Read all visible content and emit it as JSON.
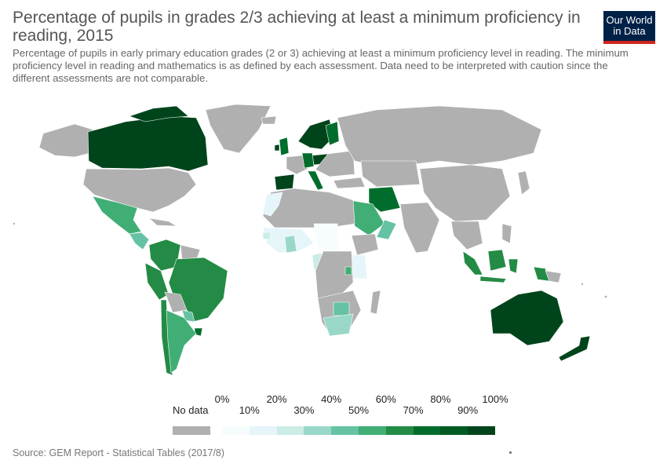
{
  "header": {
    "title": "Percentage of pupils in grades 2/3 achieving at least a minimum proficiency in reading, 2015",
    "subtitle": "Percentage of pupils in early primary education grades (2 or 3) achieving at least a minimum proficiency level in reading. The minimum proficiency level in reading and mathematics is as defined by each assessment. Data need to be interpreted with caution since the different assessments are not comparable.",
    "logo_line1": "Our World",
    "logo_line2": "in Data"
  },
  "legend": {
    "no_data_label": "No data",
    "no_data_color": "#b0b0b0",
    "ticks_top": [
      "0%",
      "20%",
      "40%",
      "60%",
      "80%",
      "100%"
    ],
    "ticks_bottom": [
      "10%",
      "30%",
      "50%",
      "70%",
      "90%"
    ],
    "bins": [
      {
        "range": "0-10",
        "color": "#f7fcfd"
      },
      {
        "range": "10-20",
        "color": "#e5f5f9"
      },
      {
        "range": "20-30",
        "color": "#ccece6"
      },
      {
        "range": "30-40",
        "color": "#99d8c9"
      },
      {
        "range": "40-50",
        "color": "#66c2a4"
      },
      {
        "range": "50-60",
        "color": "#41ae76"
      },
      {
        "range": "60-70",
        "color": "#238b45"
      },
      {
        "range": "70-80",
        "color": "#006d2c"
      },
      {
        "range": "80-90",
        "color": "#005a23"
      },
      {
        "range": "90-100",
        "color": "#00441b"
      }
    ]
  },
  "source": "Source: GEM Report - Statistical Tables (2017/8)"
}
